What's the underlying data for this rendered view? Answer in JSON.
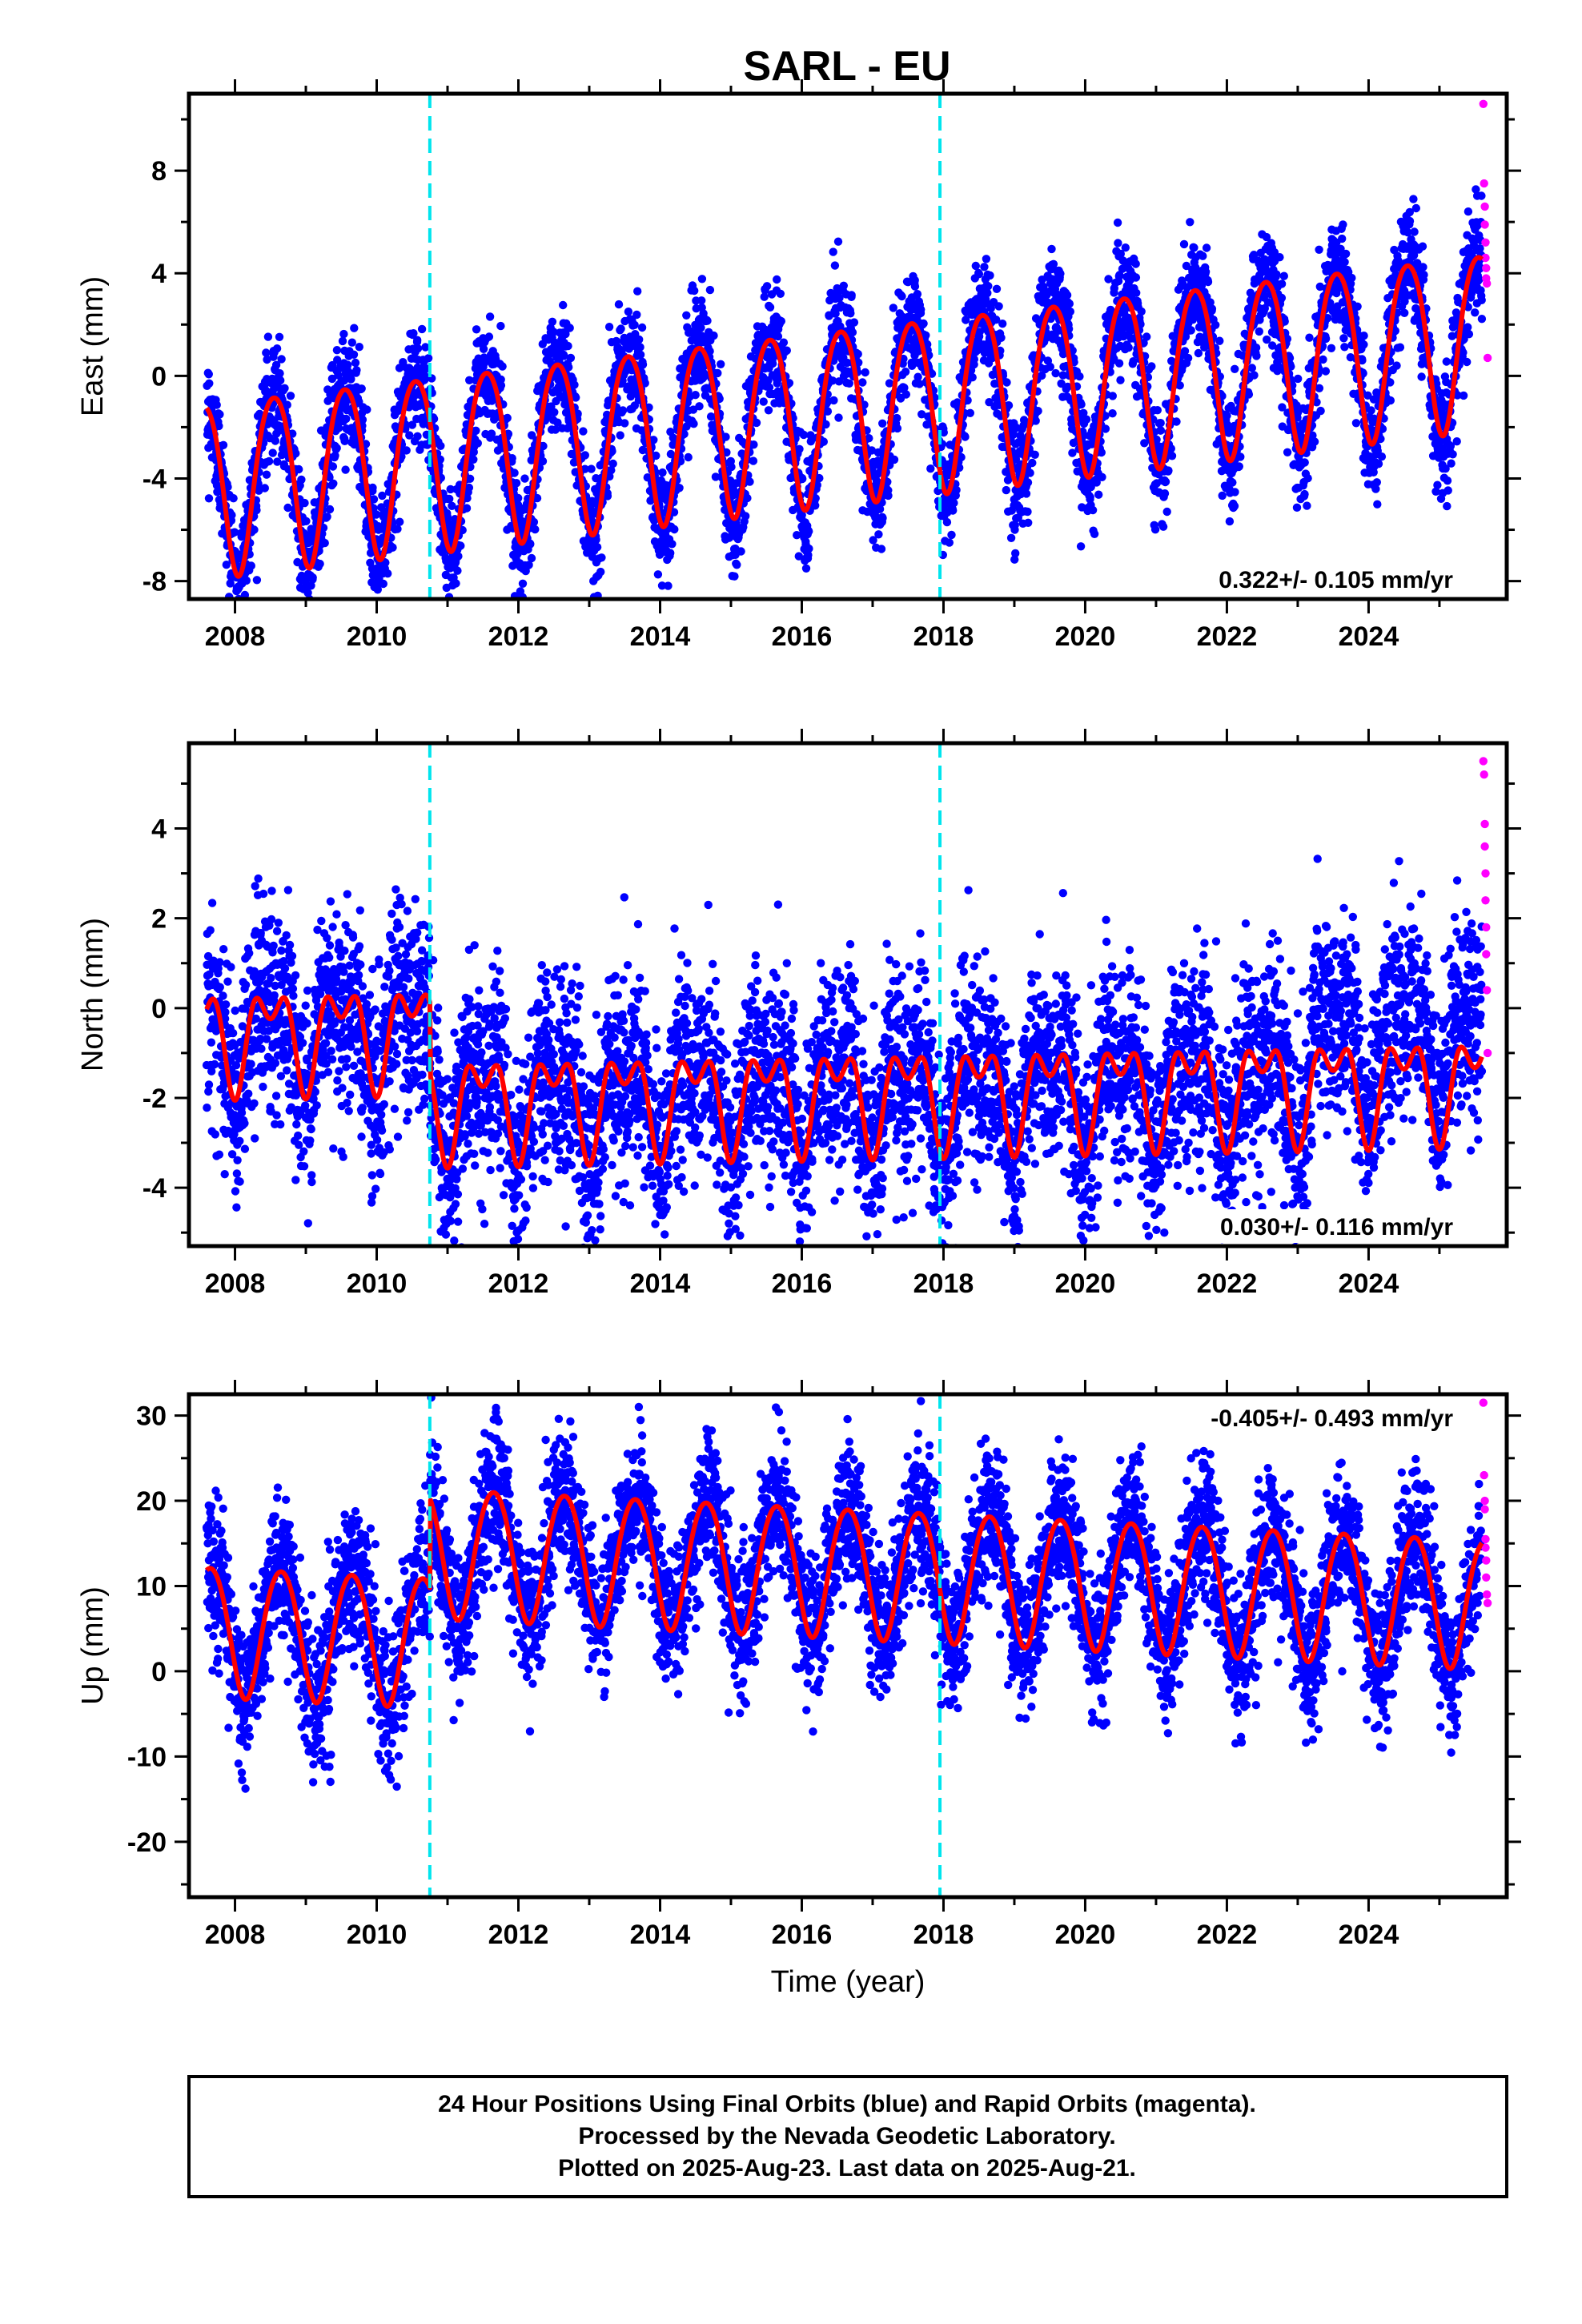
{
  "title": "SARL - EU",
  "footer": [
    "24 Hour Positions Using Final Orbits (blue) and Rapid Orbits (magenta).",
    "Processed by the Nevada Geodetic Laboratory.",
    "Plotted on 2025-Aug-23. Last data on 2025-Aug-21."
  ],
  "colors": {
    "final_orbits": "#0000ff",
    "rapid_orbits": "#ff00ff",
    "model": "#ff0000",
    "events": "#00e5ee"
  },
  "chart_data": [
    {
      "type": "scatter",
      "component": "east",
      "ylabel": "East (mm)",
      "xlabel": "",
      "xlim": [
        2007.35,
        2025.95
      ],
      "ylim": [
        -8.7,
        11.0
      ],
      "xticks": [
        2008,
        2010,
        2012,
        2014,
        2016,
        2018,
        2020,
        2022,
        2024
      ],
      "yticks": [
        -8,
        -4,
        0,
        4,
        8
      ],
      "event_lines": [
        2010.75,
        2017.95
      ],
      "rate_label": "0.322+/- 0.105 mm/yr",
      "rate_position": "bottom-right",
      "model": {
        "velocity": 0.322,
        "offset": -1.3,
        "ref_year": 2016.5,
        "annual_amplitude": 3.4,
        "annual_phase_year": 2008.55,
        "semiannual_amplitude": 0.4,
        "semiannual_phase_year": 2008.3,
        "noise_sd": 1.1
      },
      "series": [
        {
          "name": "Final Orbits",
          "x_range": [
            2007.6,
            2025.6
          ]
        },
        {
          "name": "Rapid Orbits",
          "x": [
            2025.62,
            2025.63,
            2025.64,
            2025.64,
            2025.65,
            2025.65,
            2025.66,
            2025.66,
            2025.67,
            2025.68
          ],
          "values": [
            10.6,
            7.5,
            6.6,
            5.9,
            5.2,
            4.6,
            4.2,
            3.8,
            3.6,
            0.7
          ]
        }
      ]
    },
    {
      "type": "scatter",
      "component": "north",
      "ylabel": "North (mm)",
      "xlabel": "",
      "xlim": [
        2007.35,
        2025.95
      ],
      "ylim": [
        -5.3,
        5.9
      ],
      "xticks": [
        2008,
        2010,
        2012,
        2014,
        2016,
        2018,
        2020,
        2022,
        2024
      ],
      "yticks": [
        -4,
        -2,
        0,
        2,
        4
      ],
      "event_lines": [
        2010.75,
        2017.95
      ],
      "rate_label": "0.030+/- 0.116 mm/yr",
      "rate_position": "bottom-right",
      "model": {
        "velocity": 0.03,
        "offset": -0.3,
        "ref_year": 2016.5,
        "annual_amplitude": 0.9,
        "annual_phase_year": 2008.5,
        "semiannual_amplitude": 0.6,
        "semiannual_phase_year": 2008.25,
        "noise_sd": 1.1,
        "steps": [
          {
            "year": 2010.75,
            "size": -1.6
          }
        ]
      },
      "series": [
        {
          "name": "Final Orbits",
          "x_range": [
            2007.6,
            2025.6
          ]
        },
        {
          "name": "Rapid Orbits",
          "x": [
            2025.62,
            2025.63,
            2025.64,
            2025.64,
            2025.65,
            2025.65,
            2025.66,
            2025.66,
            2025.67,
            2025.68
          ],
          "values": [
            5.5,
            5.2,
            4.1,
            3.6,
            3.0,
            2.4,
            1.8,
            1.2,
            0.4,
            -1.0
          ]
        }
      ]
    },
    {
      "type": "scatter",
      "component": "up",
      "ylabel": "Up (mm)",
      "xlabel": "Time (year)",
      "xlim": [
        2007.35,
        2025.95
      ],
      "ylim": [
        -26.5,
        32.5
      ],
      "xticks": [
        2008,
        2010,
        2012,
        2014,
        2016,
        2018,
        2020,
        2022,
        2024
      ],
      "yticks": [
        -20,
        -10,
        0,
        10,
        20,
        30
      ],
      "event_lines": [
        2010.75,
        2017.95
      ],
      "rate_label": "-0.405+/- 0.493 mm/yr",
      "rate_position": "top-right",
      "model": {
        "velocity": -0.405,
        "offset": 1.5,
        "ref_year": 2016.5,
        "annual_amplitude": 7.6,
        "annual_phase_year": 2008.65,
        "semiannual_amplitude": 0.6,
        "semiannual_phase_year": 2008.4,
        "noise_sd": 4.2,
        "steps": [
          {
            "year": 2010.75,
            "size": 10.5
          }
        ]
      },
      "series": [
        {
          "name": "Final Orbits",
          "x_range": [
            2007.6,
            2025.6
          ]
        },
        {
          "name": "Rapid Orbits",
          "x": [
            2025.62,
            2025.63,
            2025.64,
            2025.64,
            2025.65,
            2025.65,
            2025.66,
            2025.66,
            2025.67,
            2025.68
          ],
          "values": [
            31.5,
            23.0,
            20.0,
            19.0,
            15.5,
            14.5,
            13.0,
            11.0,
            9.0,
            8.0
          ]
        }
      ]
    }
  ]
}
